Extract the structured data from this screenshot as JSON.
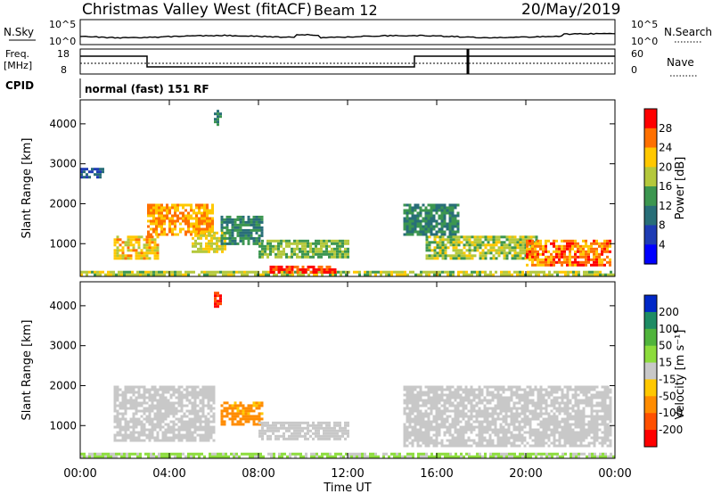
{
  "header": {
    "station": "Christmas Valley West (fitACF)",
    "beam": "Beam 12",
    "date": "20/May/2019"
  },
  "top_panels": {
    "nsky_label": "N.Sky",
    "nsky_ticks": [
      "10^5",
      "10^0"
    ],
    "nsearch_label": "N.Search",
    "nsearch_ticks": [
      "10^5",
      "10^0"
    ],
    "freq_label_line1": "Freq.",
    "freq_label_line2": "[MHz]",
    "freq_ticks": [
      "18",
      "8"
    ],
    "nave_label": "Nave",
    "nave_ticks": [
      "60",
      "0"
    ],
    "cpid_label": "CPID",
    "cpid_text": "normal (fast) 151 RF"
  },
  "x_axis": {
    "label": "Time UT",
    "ticks": [
      "00:00",
      "04:00",
      "08:00",
      "12:00",
      "16:00",
      "20:00",
      "00:00"
    ],
    "hours": [
      0,
      4,
      8,
      12,
      16,
      20,
      24
    ]
  },
  "chart_data": [
    {
      "type": "heatmap",
      "panel": "power",
      "ylabel": "Slant Range [km]",
      "yticks": [
        1000,
        2000,
        3000,
        4000
      ],
      "ylim": [
        180,
        4600
      ],
      "xlim_hours": [
        0,
        24
      ],
      "colorbar_label": "Power [dB]",
      "colorbar_ticks": [
        "28",
        "24",
        "20",
        "16",
        "12",
        "8",
        "4"
      ],
      "colorbar_colors": [
        "#ff0000",
        "#ff7000",
        "#ffc800",
        "#b4c83c",
        "#3c9650",
        "#286e78",
        "#1e3cb4",
        "#0000ff"
      ],
      "approx_regions": [
        {
          "t0": 0.0,
          "t1": 24.0,
          "r0": 200,
          "r1": 320,
          "value": 18
        },
        {
          "t0": 1.5,
          "t1": 3.5,
          "r0": 650,
          "r1": 1200,
          "value": 22
        },
        {
          "t0": 3.0,
          "t1": 6.0,
          "r0": 1200,
          "r1": 2000,
          "value": 24
        },
        {
          "t0": 5.0,
          "t1": 6.5,
          "r0": 800,
          "r1": 1300,
          "value": 20
        },
        {
          "t0": 6.3,
          "t1": 8.2,
          "r0": 1000,
          "r1": 1700,
          "value": 12
        },
        {
          "t0": 8.0,
          "t1": 12.0,
          "r0": 650,
          "r1": 1100,
          "value": 16
        },
        {
          "t0": 8.5,
          "t1": 11.5,
          "r0": 250,
          "r1": 450,
          "value": 28
        },
        {
          "t0": 14.5,
          "t1": 17.0,
          "r0": 1200,
          "r1": 2000,
          "value": 12
        },
        {
          "t0": 15.5,
          "t1": 20.5,
          "r0": 600,
          "r1": 1200,
          "value": 18
        },
        {
          "t0": 20.0,
          "t1": 23.8,
          "r0": 450,
          "r1": 1100,
          "value": 26
        },
        {
          "t0": 0.0,
          "t1": 1.0,
          "r0": 2650,
          "r1": 2900,
          "value": 8
        },
        {
          "t0": 6.0,
          "t1": 6.3,
          "r0": 4000,
          "r1": 4350,
          "value": 12
        }
      ]
    },
    {
      "type": "heatmap",
      "panel": "velocity",
      "ylabel": "Slant Range [km]",
      "yticks": [
        1000,
        2000,
        3000,
        4000
      ],
      "ylim": [
        180,
        4600
      ],
      "xlim_hours": [
        0,
        24
      ],
      "colorbar_label": "Velocity [m s⁻¹]",
      "colorbar_ticks": [
        "200",
        "100",
        "50",
        "15",
        "-15",
        "-50",
        "-100",
        "-200"
      ],
      "colorbar_colors": [
        "#0028c8",
        "#1e8c64",
        "#50b43c",
        "#8cdc3c",
        "#c8c8c8",
        "#ffc800",
        "#ff8c00",
        "#ff5000",
        "#ff0000"
      ],
      "approx_regions": [
        {
          "t0": 0.0,
          "t1": 24.0,
          "r0": 200,
          "r1": 320,
          "value": 20
        },
        {
          "t0": 1.5,
          "t1": 6.0,
          "r0": 650,
          "r1": 2000,
          "value": 0
        },
        {
          "t0": 6.3,
          "t1": 8.2,
          "r0": 1000,
          "r1": 1600,
          "value": -60
        },
        {
          "t0": 8.0,
          "t1": 12.0,
          "r0": 650,
          "r1": 1100,
          "value": 0
        },
        {
          "t0": 14.5,
          "t1": 23.8,
          "r0": 500,
          "r1": 2000,
          "value": 0
        },
        {
          "t0": 6.0,
          "t1": 6.3,
          "r0": 4000,
          "r1": 4350,
          "value": -200
        }
      ]
    }
  ],
  "colors": {
    "axis": "#000000"
  }
}
